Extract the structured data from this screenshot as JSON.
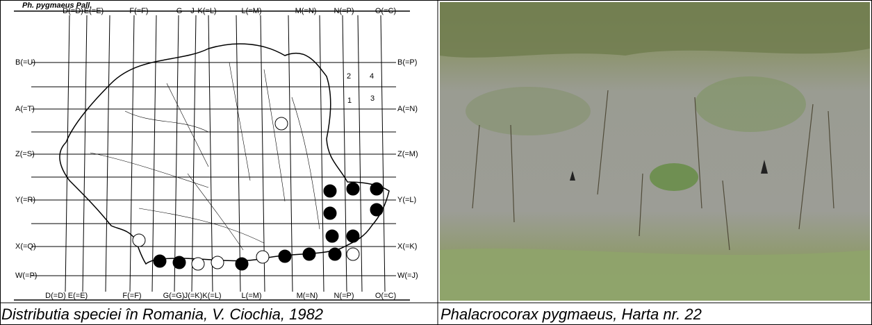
{
  "map": {
    "title": "Ph. pygmaeus Pall.",
    "top_labels": [
      "D(=D)",
      "E(=E)",
      "F(=F)",
      "G",
      "J",
      "K(=L)",
      "L(=M)",
      "M(=N)",
      "N(=P)",
      "O(=C)"
    ],
    "left_labels": [
      "B(=U)",
      "A(=T)",
      "Z(=S)",
      "Y(=R)",
      "X(=Q)",
      "W(=P)"
    ],
    "right_labels": [
      "B(=P)",
      "A(=N)",
      "Z(=M)",
      "Y(=L)",
      "X(=K)",
      "W(=J)"
    ],
    "bottom_labels": [
      "D(=D)",
      "E(=E)",
      "F(=F)",
      "G(=G)",
      "J(=K)",
      "K(=L)",
      "L(=M)",
      "M(=N)",
      "N(=P)",
      "O(=C)"
    ],
    "quadrant_labels": [
      "2",
      "4",
      "1",
      "3"
    ]
  },
  "captions": [
    "Distributia speciei în Romania, V. Ciochia, 1982",
    "Phalacrocorax pygmaeus, Harta nr. 22"
  ]
}
